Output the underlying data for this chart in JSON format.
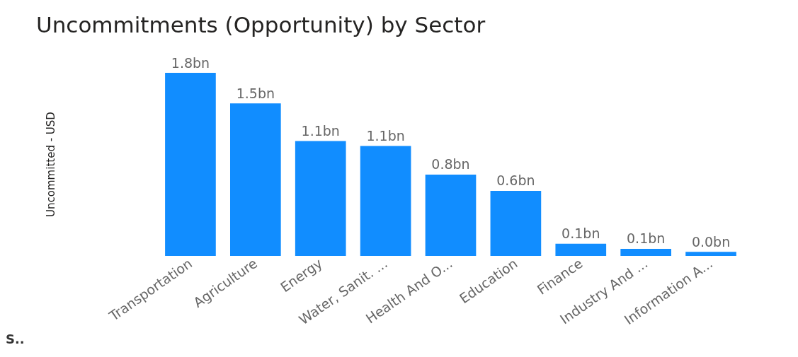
{
  "chart_data": {
    "type": "bar",
    "title": "Uncommitments (Opportunity) by Sector",
    "ylabel": "Uncommitted - USD",
    "categories": [
      "Transportation",
      "Agriculture",
      "Energy",
      "Water, Sanit. ...",
      "Health And O...",
      "Education",
      "Finance",
      "Industry And ...",
      "Information A..."
    ],
    "values": [
      1.8,
      1.5,
      1.13,
      1.08,
      0.8,
      0.64,
      0.12,
      0.07,
      0.04
    ],
    "value_labels": [
      "1.8bn",
      "1.5bn",
      "1.1bn",
      "1.1bn",
      "0.8bn",
      "0.6bn",
      "0.1bn",
      "0.1bn",
      "0.0bn"
    ],
    "color": "#118dff",
    "grid": false,
    "annotations": [
      "S.."
    ]
  }
}
